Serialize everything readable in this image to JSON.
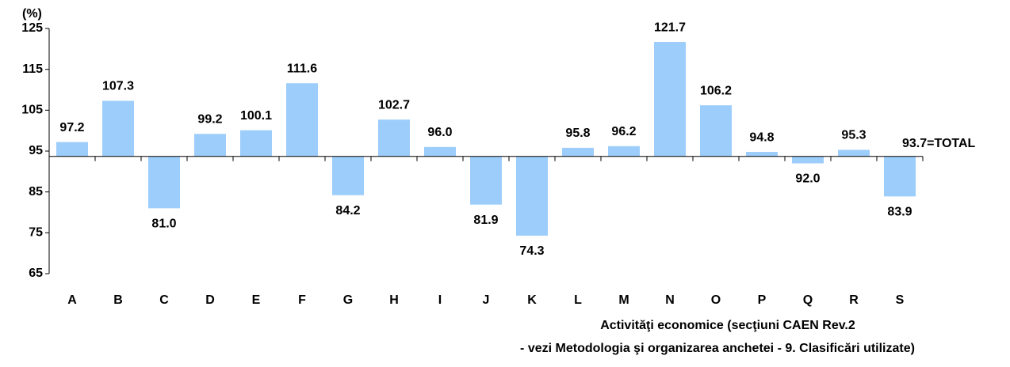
{
  "chart_data": {
    "type": "bar",
    "y_label": "(%)",
    "x_label": [
      "Activităţi economice (secţiuni CAEN Rev.2",
      "- vezi Metodologia şi organizarea anchetei - 9. Clasificări utilizate)"
    ],
    "categories": [
      "A",
      "B",
      "C",
      "D",
      "E",
      "F",
      "G",
      "H",
      "I",
      "J",
      "K",
      "L",
      "M",
      "N",
      "O",
      "P",
      "Q",
      "R",
      "S"
    ],
    "values": [
      97.2,
      107.3,
      81.0,
      99.2,
      100.1,
      111.6,
      84.2,
      102.7,
      96.0,
      81.9,
      74.3,
      95.8,
      96.2,
      121.7,
      106.2,
      94.8,
      92.0,
      95.3,
      83.9
    ],
    "value_labels": [
      "97.2",
      "107.3",
      "81.0",
      "99.2",
      "100.1",
      "111.6",
      "84.2",
      "102.7",
      "96.0",
      "81.9",
      "74.3",
      "95.8",
      "96.2",
      "121.7",
      "106.2",
      "94.8",
      "92.0",
      "95.3",
      "83.9"
    ],
    "baseline": {
      "value": 93.7,
      "label": "93.7=TOTAL"
    },
    "color": "#9dcdfb",
    "ylim": [
      65,
      125
    ],
    "yticks": [
      65,
      75,
      85,
      95,
      105,
      115,
      125
    ]
  }
}
